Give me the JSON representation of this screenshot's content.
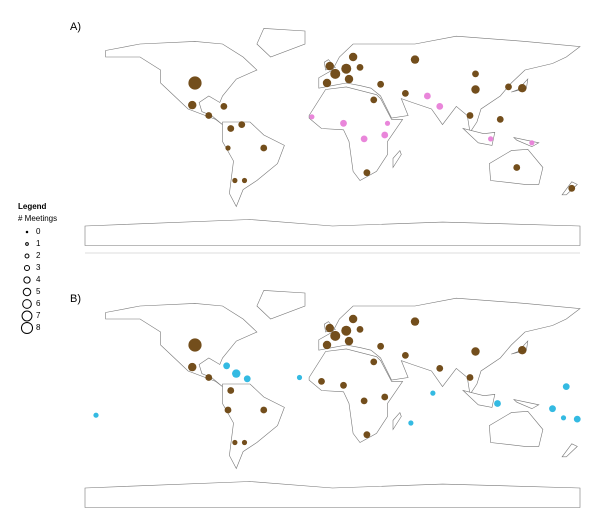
{
  "panels": [
    {
      "label": "A)",
      "markers": [
        {
          "meetings": 7,
          "color": "#6b4410"
        },
        {
          "meetings": 4,
          "color": "#6b4410"
        },
        {
          "meetings": 3,
          "color": "#6b4410"
        },
        {
          "meetings": 3,
          "color": "#6b4410"
        },
        {
          "meetings": 3,
          "color": "#6b4410"
        },
        {
          "meetings": 3,
          "color": "#6b4410"
        },
        {
          "meetings": 3,
          "color": "#6b4410"
        },
        {
          "meetings": 2,
          "color": "#6b4410"
        },
        {
          "meetings": 2,
          "color": "#6b4410"
        },
        {
          "meetings": 2,
          "color": "#6b4410"
        },
        {
          "meetings": 4,
          "color": "#6b4410"
        },
        {
          "meetings": 5,
          "color": "#6b4410"
        },
        {
          "meetings": 4,
          "color": "#6b4410"
        },
        {
          "meetings": 5,
          "color": "#6b4410"
        },
        {
          "meetings": 4,
          "color": "#6b4410"
        },
        {
          "meetings": 4,
          "color": "#6b4410"
        },
        {
          "meetings": 3,
          "color": "#6b4410"
        },
        {
          "meetings": 4,
          "color": "#6b4410"
        },
        {
          "meetings": 3,
          "color": "#6b4410"
        },
        {
          "meetings": 3,
          "color": "#6b4410"
        },
        {
          "meetings": 2,
          "color": "#e87fd8"
        },
        {
          "meetings": 3,
          "color": "#e87fd8"
        },
        {
          "meetings": 3,
          "color": "#e87fd8"
        },
        {
          "meetings": 3,
          "color": "#e87fd8"
        },
        {
          "meetings": 3,
          "color": "#6b4410"
        },
        {
          "meetings": 2,
          "color": "#e87fd8"
        },
        {
          "meetings": 3,
          "color": "#e87fd8"
        },
        {
          "meetings": 4,
          "color": "#6b4410"
        },
        {
          "meetings": 4,
          "color": "#6b4410"
        },
        {
          "meetings": 3,
          "color": "#6b4410"
        },
        {
          "meetings": 3,
          "color": "#6b4410"
        },
        {
          "meetings": 2,
          "color": "#e87fd8"
        },
        {
          "meetings": 2,
          "color": "#e87fd8"
        },
        {
          "meetings": 3,
          "color": "#6b4410"
        },
        {
          "meetings": 3,
          "color": "#6b4410"
        },
        {
          "meetings": 3,
          "color": "#6b4410"
        },
        {
          "meetings": 3,
          "color": "#6b4410"
        },
        {
          "meetings": 3,
          "color": "#6b4410"
        },
        {
          "meetings": 3,
          "color": "#e87fd8"
        }
      ]
    },
    {
      "label": "B)",
      "markers": [
        {
          "meetings": 7,
          "color": "#6b4410"
        },
        {
          "meetings": 4,
          "color": "#6b4410"
        },
        {
          "meetings": 3,
          "color": "#6b4410"
        },
        {
          "meetings": 3,
          "color": "#6b4410"
        },
        {
          "meetings": 3,
          "color": "#6b4410"
        },
        {
          "meetings": 3,
          "color": "#6b4410"
        },
        {
          "meetings": 2,
          "color": "#6b4410"
        },
        {
          "meetings": 2,
          "color": "#6b4410"
        },
        {
          "meetings": 4,
          "color": "#6b4410"
        },
        {
          "meetings": 5,
          "color": "#6b4410"
        },
        {
          "meetings": 4,
          "color": "#6b4410"
        },
        {
          "meetings": 5,
          "color": "#6b4410"
        },
        {
          "meetings": 4,
          "color": "#6b4410"
        },
        {
          "meetings": 4,
          "color": "#6b4410"
        },
        {
          "meetings": 3,
          "color": "#6b4410"
        },
        {
          "meetings": 4,
          "color": "#6b4410"
        },
        {
          "meetings": 3,
          "color": "#6b4410"
        },
        {
          "meetings": 3,
          "color": "#6b4410"
        },
        {
          "meetings": 3,
          "color": "#6b4410"
        },
        {
          "meetings": 3,
          "color": "#6b4410"
        },
        {
          "meetings": 3,
          "color": "#6b4410"
        },
        {
          "meetings": 3,
          "color": "#6b4410"
        },
        {
          "meetings": 3,
          "color": "#6b4410"
        },
        {
          "meetings": 4,
          "color": "#6b4410"
        },
        {
          "meetings": 4,
          "color": "#6b4410"
        },
        {
          "meetings": 3,
          "color": "#6b4410"
        },
        {
          "meetings": 3,
          "color": "#6b4410"
        },
        {
          "meetings": 3,
          "color": "#6b4410"
        },
        {
          "meetings": 4,
          "color": "#29b6e0"
        },
        {
          "meetings": 3,
          "color": "#29b6e0"
        },
        {
          "meetings": 3,
          "color": "#29b6e0"
        },
        {
          "meetings": 3,
          "color": "#29b6e0"
        },
        {
          "meetings": 2,
          "color": "#29b6e0"
        },
        {
          "meetings": 2,
          "color": "#29b6e0"
        },
        {
          "meetings": 2,
          "color": "#29b6e0"
        },
        {
          "meetings": 2,
          "color": "#29b6e0"
        },
        {
          "meetings": 3,
          "color": "#29b6e0"
        },
        {
          "meetings": 2,
          "color": "#29b6e0"
        },
        {
          "meetings": 3,
          "color": "#29b6e0"
        },
        {
          "meetings": 3,
          "color": "#29b6e0"
        }
      ]
    }
  ],
  "legend": {
    "title": "Legend",
    "subtitle": "# Meetings",
    "sizes": [
      0,
      1,
      2,
      3,
      4,
      5,
      6,
      7,
      8
    ]
  }
}
